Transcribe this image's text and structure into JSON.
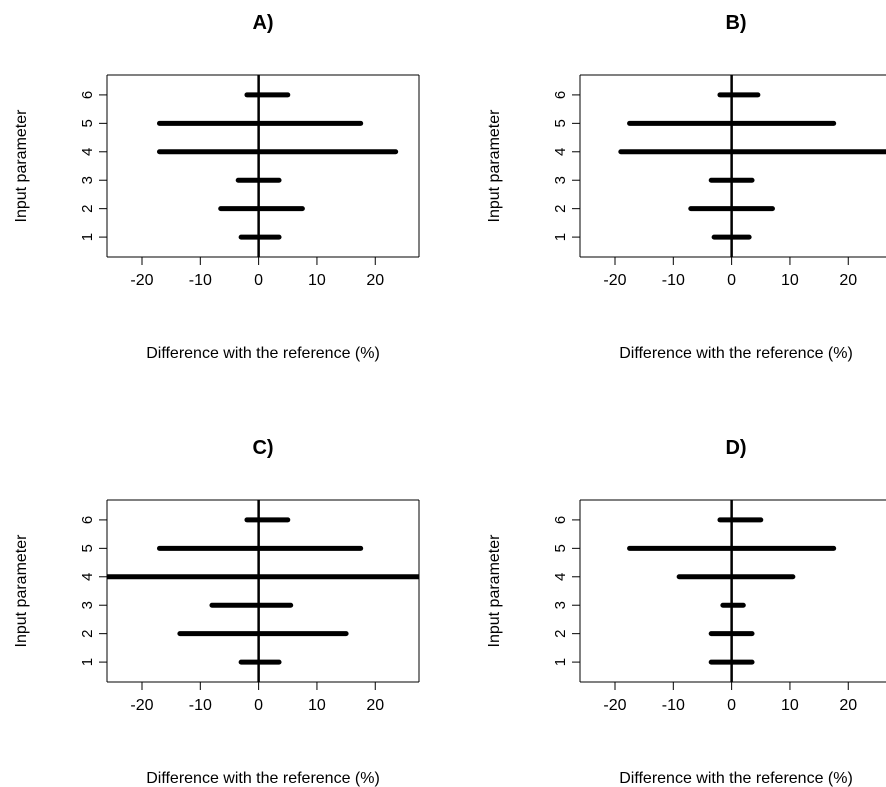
{
  "chart_data": [
    {
      "type": "errorbar",
      "title": "A)",
      "xlabel": "Difference with the reference (%)",
      "ylabel": "Input parameter",
      "xlim": [
        -26,
        27.5
      ],
      "ylim": [
        0.3,
        6.7
      ],
      "xticks": [
        "-20",
        "-10",
        "0",
        "10",
        "20"
      ],
      "yticks": [
        "1",
        "2",
        "3",
        "4",
        "5",
        "6"
      ],
      "ranges": [
        {
          "param": 1,
          "low": -3,
          "high": 3.5
        },
        {
          "param": 2,
          "low": -6.5,
          "high": 7.5
        },
        {
          "param": 3,
          "low": -3.5,
          "high": 3.5
        },
        {
          "param": 4,
          "low": -17,
          "high": 23.5
        },
        {
          "param": 5,
          "low": -17,
          "high": 17.5
        },
        {
          "param": 6,
          "low": -2,
          "high": 5
        }
      ]
    },
    {
      "type": "errorbar",
      "title": "B)",
      "xlabel": "Difference with the reference (%)",
      "ylabel": "Input parameter",
      "xlim": [
        -26,
        27.5
      ],
      "ylim": [
        0.3,
        6.7
      ],
      "xticks": [
        "-20",
        "-10",
        "0",
        "10",
        "20"
      ],
      "yticks": [
        "1",
        "2",
        "3",
        "4",
        "5",
        "6"
      ],
      "ranges": [
        {
          "param": 1,
          "low": -3,
          "high": 3
        },
        {
          "param": 2,
          "low": -7,
          "high": 7
        },
        {
          "param": 3,
          "low": -3.5,
          "high": 3.5
        },
        {
          "param": 4,
          "low": -19,
          "high": 27.5
        },
        {
          "param": 5,
          "low": -17.5,
          "high": 17.5
        },
        {
          "param": 6,
          "low": -2,
          "high": 4.5
        }
      ]
    },
    {
      "type": "errorbar",
      "title": "C)",
      "xlabel": "Difference with the reference (%)",
      "ylabel": "Input parameter",
      "xlim": [
        -26,
        27.5
      ],
      "ylim": [
        0.3,
        6.7
      ],
      "xticks": [
        "-20",
        "-10",
        "0",
        "10",
        "20"
      ],
      "yticks": [
        "1",
        "2",
        "3",
        "4",
        "5",
        "6"
      ],
      "ranges": [
        {
          "param": 1,
          "low": -3,
          "high": 3.5
        },
        {
          "param": 2,
          "low": -13.5,
          "high": 15
        },
        {
          "param": 3,
          "low": -8,
          "high": 5.5
        },
        {
          "param": 4,
          "low": -26,
          "high": 27.5
        },
        {
          "param": 5,
          "low": -17,
          "high": 17.5
        },
        {
          "param": 6,
          "low": -2,
          "high": 5
        }
      ]
    },
    {
      "type": "errorbar",
      "title": "D)",
      "xlabel": "Difference with the reference (%)",
      "ylabel": "Input parameter",
      "xlim": [
        -26,
        27.5
      ],
      "ylim": [
        0.3,
        6.7
      ],
      "xticks": [
        "-20",
        "-10",
        "0",
        "10",
        "20"
      ],
      "yticks": [
        "1",
        "2",
        "3",
        "4",
        "5",
        "6"
      ],
      "ranges": [
        {
          "param": 1,
          "low": -3.5,
          "high": 3.5
        },
        {
          "param": 2,
          "low": -3.5,
          "high": 3.5
        },
        {
          "param": 3,
          "low": -1.5,
          "high": 2
        },
        {
          "param": 4,
          "low": -9,
          "high": 10.5
        },
        {
          "param": 5,
          "low": -17.5,
          "high": 17.5
        },
        {
          "param": 6,
          "low": -2,
          "high": 5
        }
      ]
    }
  ]
}
